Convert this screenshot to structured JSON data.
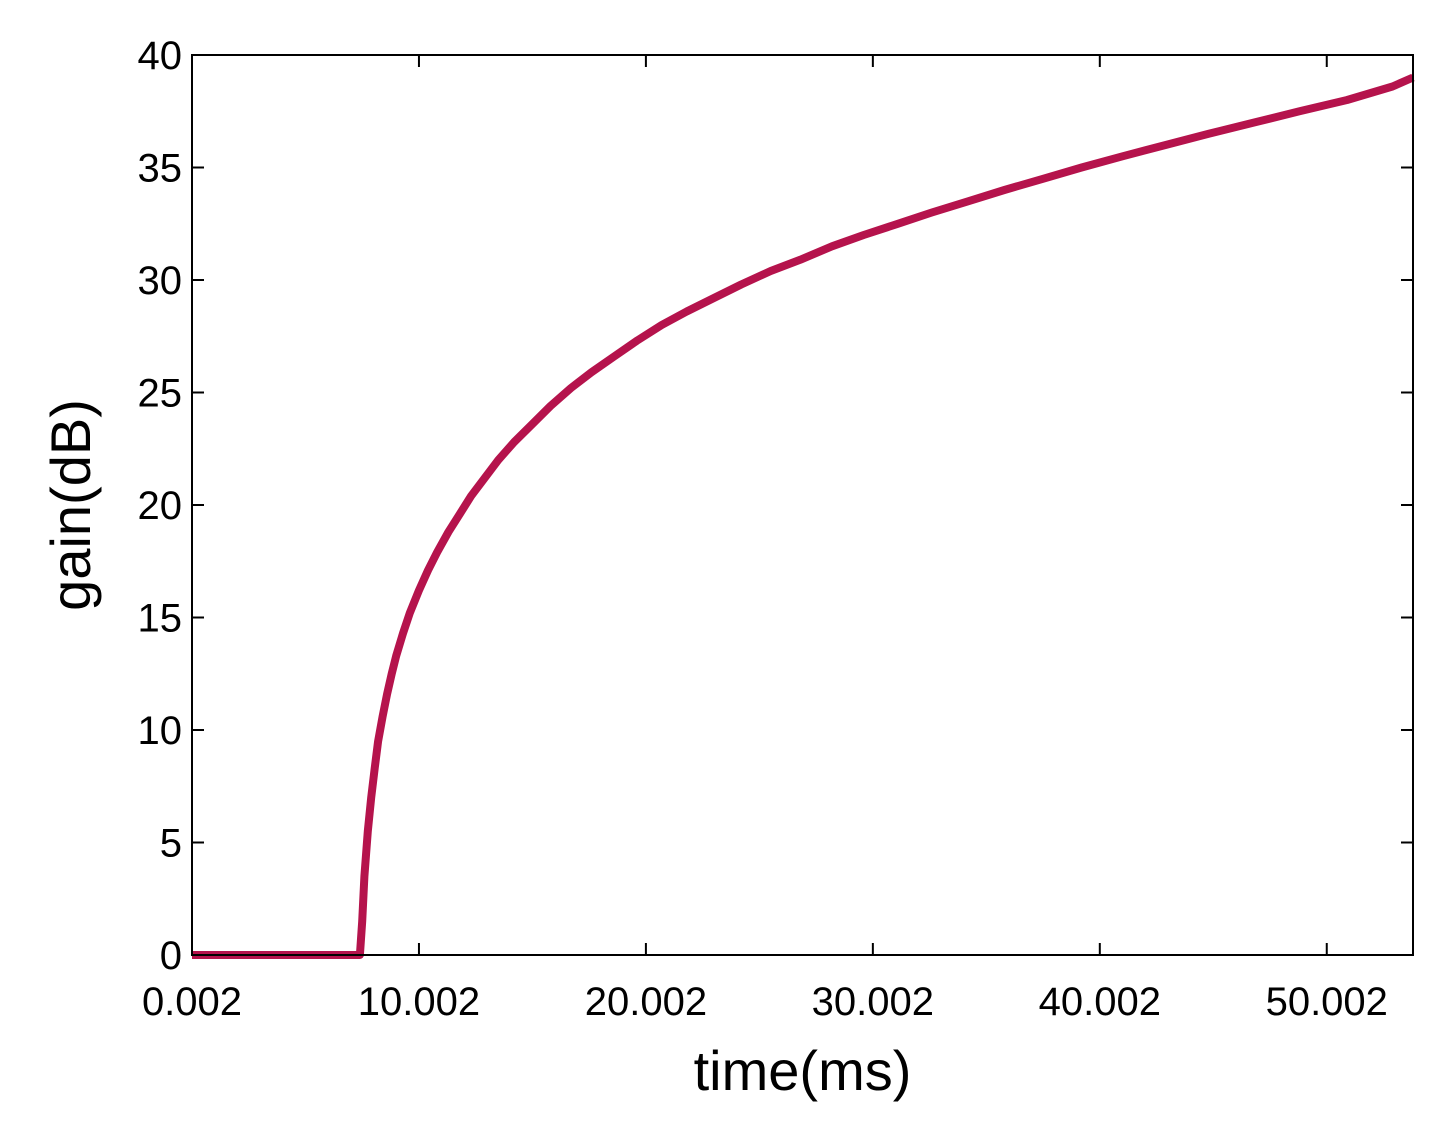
{
  "chart_data": {
    "type": "line",
    "title": "",
    "xlabel": "time(ms)",
    "ylabel": "gain(dB)",
    "xlim": [
      0.002,
      53.802
    ],
    "ylim": [
      0,
      40
    ],
    "xticks": [
      0.002,
      10.002,
      20.002,
      30.002,
      40.002,
      50.002
    ],
    "xtick_labels": [
      "0.002",
      "10.002",
      "20.002",
      "30.002",
      "40.002",
      "50.002"
    ],
    "yticks": [
      0,
      5,
      10,
      15,
      20,
      25,
      30,
      35,
      40
    ],
    "ytick_labels": [
      "0",
      "5",
      "10",
      "15",
      "20",
      "25",
      "30",
      "35",
      "40"
    ],
    "grid": false,
    "legend": "none",
    "line_color": "#B5134C",
    "series": [
      {
        "x": [
          0.002,
          7.4,
          7.5,
          7.6,
          7.75,
          7.9,
          8.05,
          8.2,
          8.4,
          8.6,
          8.8,
          9.0,
          9.3,
          9.6,
          10.0,
          10.4,
          10.8,
          11.3,
          11.8,
          12.3,
          12.9,
          13.5,
          14.2,
          15.0,
          15.8,
          16.7,
          17.6,
          18.6,
          19.6,
          20.7,
          21.8,
          23.0,
          24.2,
          25.5,
          26.8,
          28.2,
          29.6,
          31.1,
          32.6,
          34.2,
          35.8,
          37.5,
          39.2,
          41.0,
          42.9,
          44.8,
          46.8,
          48.8,
          50.9,
          52.9,
          53.8
        ],
        "y": [
          0,
          0,
          1.5,
          3.5,
          5.5,
          7.0,
          8.3,
          9.5,
          10.6,
          11.6,
          12.5,
          13.3,
          14.3,
          15.2,
          16.2,
          17.1,
          17.9,
          18.8,
          19.6,
          20.4,
          21.2,
          22.0,
          22.8,
          23.6,
          24.4,
          25.2,
          25.9,
          26.6,
          27.3,
          28.0,
          28.6,
          29.2,
          29.8,
          30.4,
          30.9,
          31.5,
          32.0,
          32.5,
          33.0,
          33.5,
          34.0,
          34.5,
          35.0,
          35.5,
          36.0,
          36.5,
          37.0,
          37.5,
          38.0,
          38.6,
          39.0
        ]
      }
    ]
  }
}
